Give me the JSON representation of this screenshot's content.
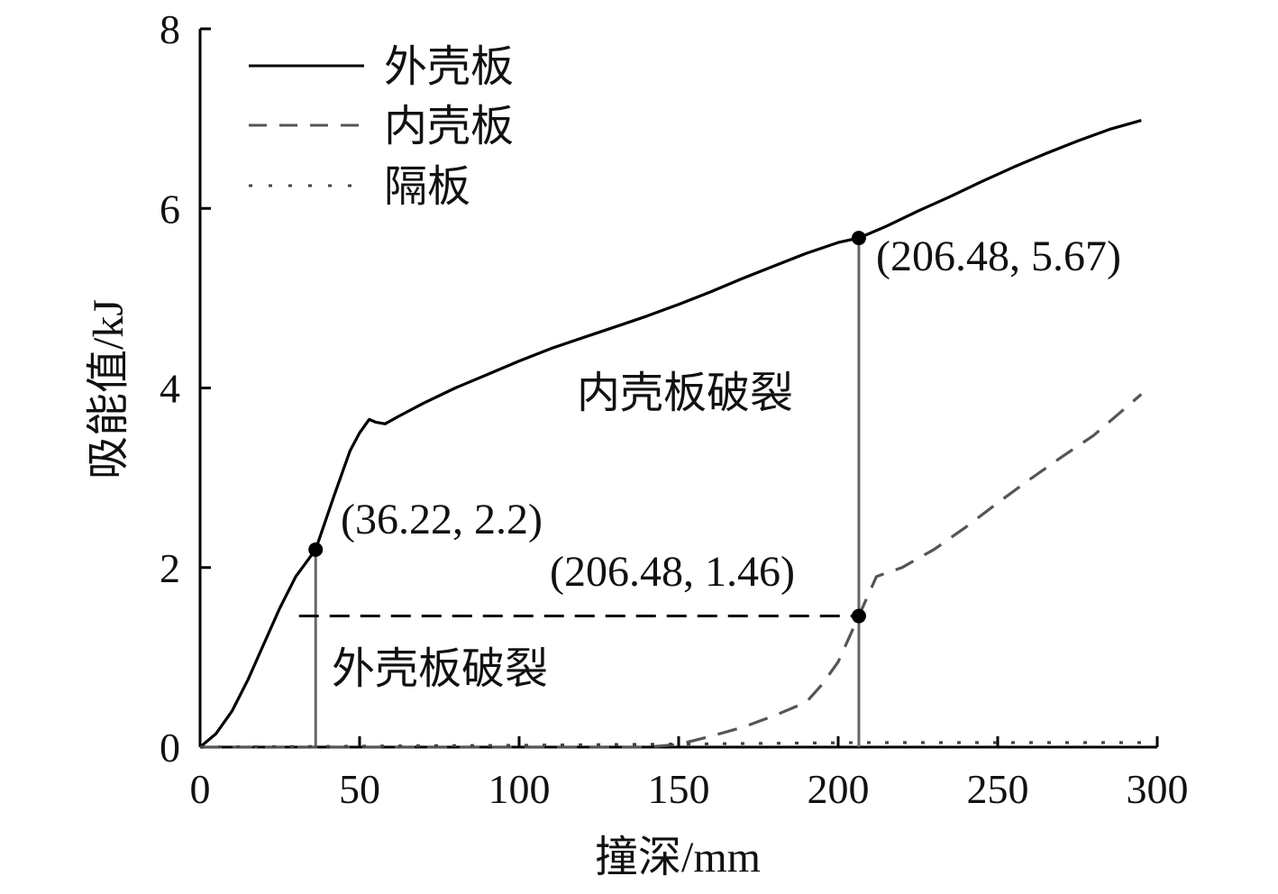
{
  "chart_data": {
    "type": "line",
    "xlabel": "撞深/mm",
    "ylabel": "吸能值/kJ",
    "xlim": [
      0,
      300
    ],
    "ylim": [
      0,
      8
    ],
    "xticks": [
      0,
      50,
      100,
      150,
      200,
      250,
      300
    ],
    "yticks": [
      0,
      2,
      4,
      6,
      8
    ],
    "grid": false,
    "legend_position": "top-left",
    "colors": {
      "outer": "#000000",
      "inner": "#555555",
      "partition": "#444444",
      "marker": "#000000",
      "guide": "#666666"
    },
    "series": [
      {
        "name": "外壳板",
        "style": "solid",
        "x": [
          0,
          5,
          10,
          15,
          20,
          25,
          30,
          36.22,
          42,
          47,
          50,
          53,
          55,
          58,
          62,
          70,
          80,
          90,
          100,
          110,
          120,
          130,
          140,
          150,
          160,
          170,
          180,
          190,
          200,
          206.48,
          215,
          225,
          235,
          245,
          255,
          265,
          275,
          285,
          295
        ],
        "y": [
          0,
          0.15,
          0.4,
          0.75,
          1.15,
          1.55,
          1.9,
          2.2,
          2.8,
          3.3,
          3.5,
          3.65,
          3.62,
          3.6,
          3.68,
          3.83,
          4.0,
          4.15,
          4.3,
          4.44,
          4.56,
          4.68,
          4.8,
          4.93,
          5.07,
          5.22,
          5.36,
          5.5,
          5.62,
          5.67,
          5.8,
          5.97,
          6.13,
          6.3,
          6.46,
          6.61,
          6.75,
          6.88,
          6.98
        ]
      },
      {
        "name": "内壳板",
        "style": "dashed",
        "x": [
          0,
          140,
          150,
          160,
          170,
          180,
          190,
          195,
          200,
          206.48,
          212,
          220,
          230,
          240,
          250,
          260,
          270,
          280,
          295
        ],
        "y": [
          0,
          0,
          0.03,
          0.12,
          0.22,
          0.35,
          0.5,
          0.7,
          0.95,
          1.46,
          1.9,
          2.0,
          2.2,
          2.45,
          2.72,
          2.98,
          3.23,
          3.47,
          3.93
        ]
      },
      {
        "name": "隔板",
        "style": "dotted",
        "x": [
          0,
          100,
          206.48,
          295
        ],
        "y": [
          0,
          0.02,
          0.05,
          0.05
        ]
      }
    ],
    "points": [
      {
        "x": 36.22,
        "y": 2.2,
        "label": "(36.22, 2.2)"
      },
      {
        "x": 206.48,
        "y": 5.67,
        "label": "(206.48, 5.67)"
      },
      {
        "x": 206.48,
        "y": 1.46,
        "label": "(206.48, 1.46)"
      }
    ],
    "annotations": [
      {
        "text": "外壳板破裂"
      },
      {
        "text": "内壳板破裂"
      }
    ],
    "threshold_line": {
      "y": 1.46,
      "x_range": [
        31,
        206.48
      ],
      "style": "dashed"
    }
  }
}
